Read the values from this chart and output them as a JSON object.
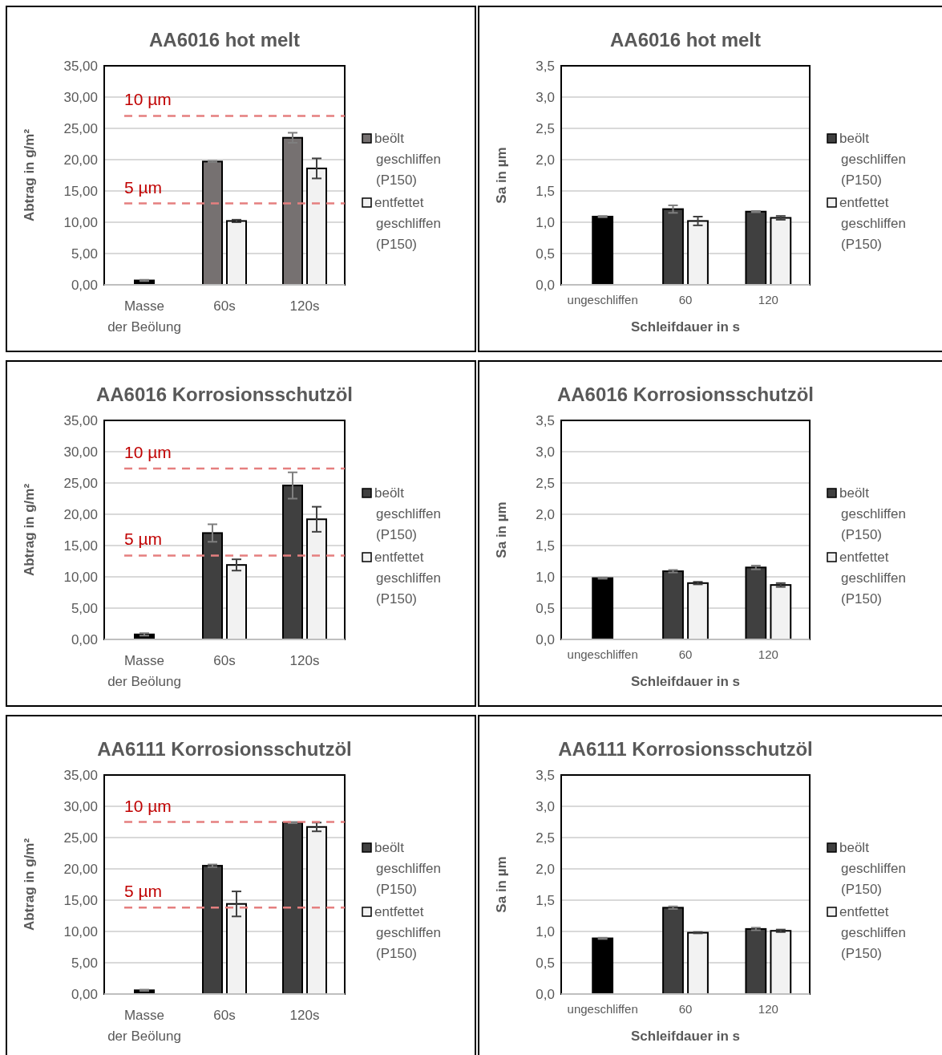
{
  "chart_data": [
    {
      "type": "bar",
      "title": "AA6016 hot melt",
      "ylabel": "Abtrag in g/m²",
      "categories": [
        "Masse der Beölung",
        "60s",
        "120s"
      ],
      "ylim": [
        0,
        35
      ],
      "yticks": [
        {
          "value": 0,
          "label": "0,00"
        },
        {
          "value": 5,
          "label": "5,00"
        },
        {
          "value": 10,
          "label": "10,00"
        },
        {
          "value": 15,
          "label": "15,00"
        },
        {
          "value": 20,
          "label": "20,00"
        },
        {
          "value": 25,
          "label": "25,00"
        },
        {
          "value": 30,
          "label": "30,00"
        },
        {
          "value": 35,
          "label": "35,00"
        }
      ],
      "grid": "y",
      "legend": "right",
      "series": [
        {
          "color": "#000000",
          "values": [
            0.7,
            null,
            null
          ],
          "errors": [
            0.1,
            null,
            null
          ]
        },
        {
          "name": "beölt geschliffen (P150)",
          "color": "#767171",
          "values": [
            null,
            19.7,
            23.5
          ],
          "errors": [
            null,
            0.1,
            0.8
          ]
        },
        {
          "name": "entfettet geschliffen (P150)",
          "color": "#f2f2f2",
          "values": [
            null,
            10.2,
            18.6
          ],
          "errors": [
            null,
            0.2,
            1.6
          ]
        }
      ],
      "ref_lines": [
        {
          "axis": "y",
          "value": 27.0,
          "label": "10 µm",
          "color": "#e57f7f",
          "line_style": "dashed"
        },
        {
          "axis": "y",
          "value": 13.0,
          "label": "5 µm",
          "color": "#e57f7f",
          "line_style": "dashed"
        }
      ]
    },
    {
      "type": "bar",
      "title": "AA6016 hot melt",
      "xlabel": "Schleifdauer in s",
      "ylabel": "Sa in µm",
      "categories": [
        "ungeschliffen",
        "60",
        "120"
      ],
      "ylim": [
        0,
        3.5
      ],
      "yticks": [
        {
          "value": 0,
          "label": "0,0"
        },
        {
          "value": 0.5,
          "label": "0,5"
        },
        {
          "value": 1,
          "label": "1,0"
        },
        {
          "value": 1.5,
          "label": "1,5"
        },
        {
          "value": 2,
          "label": "2,0"
        },
        {
          "value": 2.5,
          "label": "2,5"
        },
        {
          "value": 3,
          "label": "3,0"
        },
        {
          "value": 3.5,
          "label": "3,5"
        }
      ],
      "grid": "y",
      "legend": "right",
      "series": [
        {
          "color": "#000000",
          "values": [
            1.09,
            null,
            null
          ],
          "errors": [
            0.01,
            null,
            null
          ]
        },
        {
          "name": "beölt geschliffen (P150)",
          "color": "#404040",
          "values": [
            null,
            1.21,
            1.17
          ],
          "errors": [
            null,
            0.06,
            0.01
          ]
        },
        {
          "name": "entfettet geschliffen (P150)",
          "color": "#f2f2f2",
          "values": [
            null,
            1.02,
            1.07
          ],
          "errors": [
            null,
            0.07,
            0.03
          ]
        }
      ]
    },
    {
      "type": "bar",
      "title": "AA6016 Korrosionsschutzöl",
      "ylabel": "Abtrag in g/m²",
      "categories": [
        "Masse der Beölung",
        "60s",
        "120s"
      ],
      "ylim": [
        0,
        35
      ],
      "yticks": [
        {
          "value": 0,
          "label": "0,00"
        },
        {
          "value": 5,
          "label": "5,00"
        },
        {
          "value": 10,
          "label": "10,00"
        },
        {
          "value": 15,
          "label": "15,00"
        },
        {
          "value": 20,
          "label": "20,00"
        },
        {
          "value": 25,
          "label": "25,00"
        },
        {
          "value": 30,
          "label": "30,00"
        },
        {
          "value": 35,
          "label": "35,00"
        }
      ],
      "grid": "y",
      "legend": "right",
      "series": [
        {
          "color": "#000000",
          "values": [
            0.8,
            null,
            null
          ],
          "errors": [
            0.2,
            null,
            null
          ]
        },
        {
          "name": "beölt geschliffen (P150)",
          "color": "#404040",
          "values": [
            null,
            17.0,
            24.6
          ],
          "errors": [
            null,
            1.4,
            2.1
          ]
        },
        {
          "name": "entfettet geschliffen (P150)",
          "color": "#f2f2f2",
          "values": [
            null,
            11.9,
            19.2
          ],
          "errors": [
            null,
            0.9,
            2.0
          ]
        }
      ],
      "ref_lines": [
        {
          "axis": "y",
          "value": 27.3,
          "label": "10 µm",
          "color": "#e57f7f",
          "line_style": "dashed"
        },
        {
          "axis": "y",
          "value": 13.4,
          "label": "5 µm",
          "color": "#e57f7f",
          "line_style": "dashed"
        }
      ]
    },
    {
      "type": "bar",
      "title": "AA6016 Korrosionsschutzöl",
      "xlabel": "Schleifdauer in s",
      "ylabel": "Sa in µm",
      "categories": [
        "ungeschliffen",
        "60",
        "120"
      ],
      "ylim": [
        0,
        3.5
      ],
      "yticks": [
        {
          "value": 0,
          "label": "0,0"
        },
        {
          "value": 0.5,
          "label": "0,5"
        },
        {
          "value": 1,
          "label": "1,0"
        },
        {
          "value": 1.5,
          "label": "1,5"
        },
        {
          "value": 2,
          "label": "2,0"
        },
        {
          "value": 2.5,
          "label": "2,5"
        },
        {
          "value": 3,
          "label": "3,0"
        },
        {
          "value": 3.5,
          "label": "3,5"
        }
      ],
      "grid": "y",
      "legend": "right",
      "series": [
        {
          "color": "#000000",
          "values": [
            0.98,
            null,
            null
          ],
          "errors": [
            0.01,
            null,
            null
          ]
        },
        {
          "name": "beölt geschliffen (P150)",
          "color": "#404040",
          "values": [
            null,
            1.09,
            1.15
          ],
          "errors": [
            null,
            0.02,
            0.03
          ]
        },
        {
          "name": "entfettet geschliffen (P150)",
          "color": "#f2f2f2",
          "values": [
            null,
            0.9,
            0.87
          ],
          "errors": [
            null,
            0.02,
            0.03
          ]
        }
      ]
    },
    {
      "type": "bar",
      "title": "AA6111 Korrosionsschutzöl",
      "ylabel": "Abtrag in g/m²",
      "categories": [
        "Masse der Beölung",
        "60s",
        "120s"
      ],
      "ylim": [
        0,
        35
      ],
      "yticks": [
        {
          "value": 0,
          "label": "0,00"
        },
        {
          "value": 5,
          "label": "5,00"
        },
        {
          "value": 10,
          "label": "10,00"
        },
        {
          "value": 15,
          "label": "15,00"
        },
        {
          "value": 20,
          "label": "20,00"
        },
        {
          "value": 25,
          "label": "25,00"
        },
        {
          "value": 30,
          "label": "30,00"
        },
        {
          "value": 35,
          "label": "35,00"
        }
      ],
      "grid": "y",
      "legend": "right",
      "series": [
        {
          "color": "#000000",
          "values": [
            0.6,
            null,
            null
          ],
          "errors": [
            0.1,
            null,
            null
          ]
        },
        {
          "name": "beölt geschliffen (P150)",
          "color": "#404040",
          "values": [
            null,
            20.5,
            27.4
          ],
          "errors": [
            null,
            0.2,
            0.1
          ]
        },
        {
          "name": "entfettet geschliffen (P150)",
          "color": "#f2f2f2",
          "values": [
            null,
            14.4,
            26.7
          ],
          "errors": [
            null,
            2.0,
            0.7
          ]
        }
      ],
      "ref_lines": [
        {
          "axis": "y",
          "value": 27.5,
          "label": "10 µm",
          "color": "#e57f7f",
          "line_style": "dashed"
        },
        {
          "axis": "y",
          "value": 13.8,
          "label": "5 µm",
          "color": "#e57f7f",
          "line_style": "dashed"
        }
      ]
    },
    {
      "type": "bar",
      "title": "AA6111 Korrosionsschutzöl",
      "xlabel": "Schleifdauer in s",
      "ylabel": "Sa in µm",
      "categories": [
        "ungeschliffen",
        "60",
        "120"
      ],
      "ylim": [
        0,
        3.5
      ],
      "yticks": [
        {
          "value": 0,
          "label": "0,0"
        },
        {
          "value": 0.5,
          "label": "0,5"
        },
        {
          "value": 1,
          "label": "1,0"
        },
        {
          "value": 1.5,
          "label": "1,5"
        },
        {
          "value": 2,
          "label": "2,0"
        },
        {
          "value": 2.5,
          "label": "2,5"
        },
        {
          "value": 3,
          "label": "3,0"
        },
        {
          "value": 3.5,
          "label": "3,5"
        }
      ],
      "grid": "y",
      "legend": "right",
      "series": [
        {
          "color": "#000000",
          "values": [
            0.89,
            null,
            null
          ],
          "errors": [
            0.01,
            null,
            null
          ]
        },
        {
          "name": "beölt geschliffen (P150)",
          "color": "#404040",
          "values": [
            null,
            1.38,
            1.04
          ],
          "errors": [
            null,
            0.02,
            0.02
          ]
        },
        {
          "name": "entfettet geschliffen (P150)",
          "color": "#f2f2f2",
          "values": [
            null,
            0.98,
            1.01
          ],
          "errors": [
            null,
            0.01,
            0.02
          ]
        }
      ]
    }
  ]
}
